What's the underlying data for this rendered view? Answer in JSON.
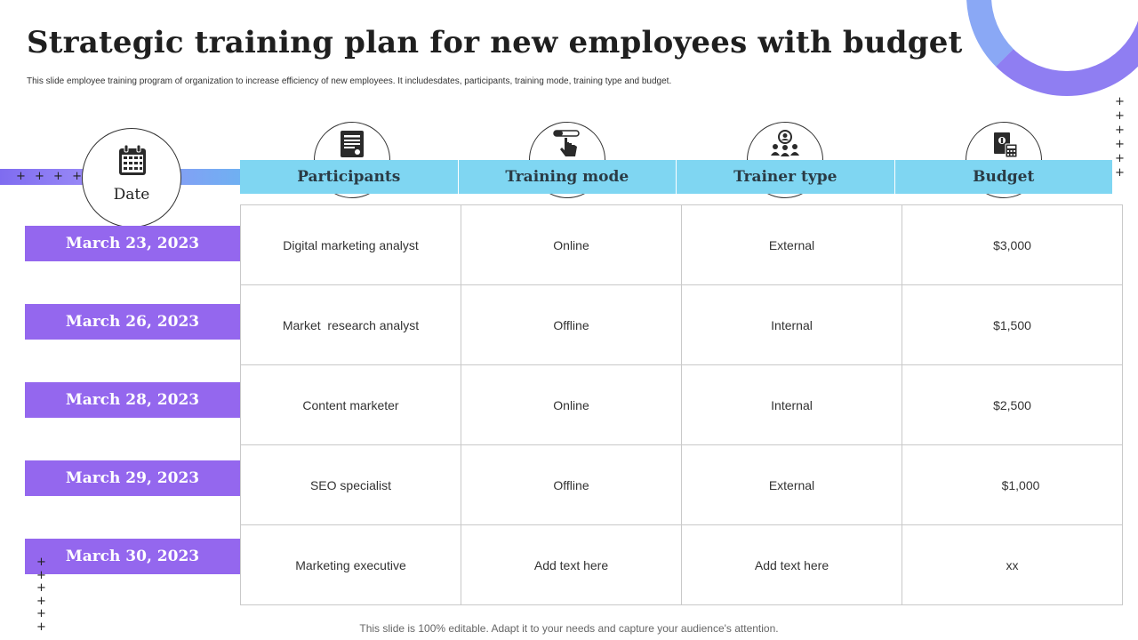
{
  "slide": {
    "title": "Strategic training plan for new employees with budget",
    "subtitle": "This slide employee training program of organization to increase efficiency of new employees. It includesdates, participants, training mode, training type and budget.",
    "footer": "This slide is 100% editable. Adapt it to your needs and capture your audience's attention."
  },
  "decor": {
    "plus_row": "+ + + + + +",
    "plus_symbol": "+",
    "accent_color": "#9467ee",
    "header_color": "#7fd6f2"
  },
  "date_header": {
    "label": "Date",
    "icon": "calendar-icon"
  },
  "columns": [
    {
      "label": "Participants",
      "icon": "document-icon"
    },
    {
      "label": "Training mode",
      "icon": "hand-pointer-icon"
    },
    {
      "label": "Trainer type",
      "icon": "team-icon"
    },
    {
      "label": "Budget",
      "icon": "finance-icon"
    }
  ],
  "rows": [
    {
      "date": "March 23, 2023",
      "participants": "Digital marketing analyst",
      "mode": "Online",
      "trainer": "External",
      "budget": "$3,000"
    },
    {
      "date": "March 26, 2023",
      "participants": "Market  research analyst",
      "mode": "Offline",
      "trainer": "Internal",
      "budget": "$1,500"
    },
    {
      "date": "March 28, 2023",
      "participants": "Content marketer",
      "mode": "Online",
      "trainer": "Internal",
      "budget": "$2,500"
    },
    {
      "date": "March 29, 2023",
      "participants": "SEO specialist",
      "mode": "Offline",
      "trainer": "External",
      "budget": "$1,000"
    },
    {
      "date": "March 30, 2023",
      "participants": "Marketing executive",
      "mode": "Add text here",
      "trainer": "Add text here",
      "budget": "xx"
    }
  ]
}
